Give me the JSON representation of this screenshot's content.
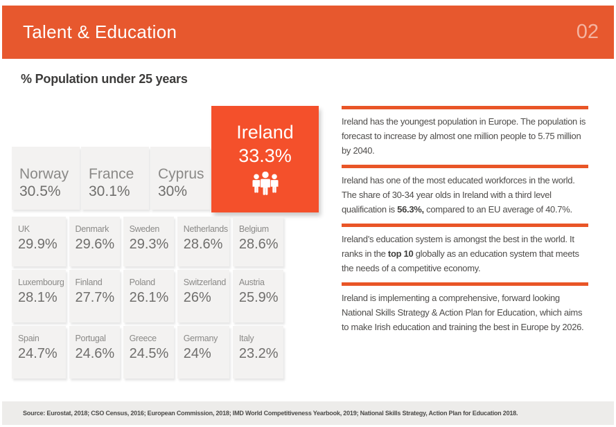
{
  "header": {
    "title": "Talent & Education",
    "page_number": "02"
  },
  "main": {
    "subtitle": "% Population under 25 years"
  },
  "tiles": {
    "featured": {
      "country": "Ireland",
      "value": "33.3%",
      "icon": "people-group-icon"
    },
    "top_row": [
      {
        "country": "Norway",
        "value": "30.5%"
      },
      {
        "country": "France",
        "value": "30.1%"
      },
      {
        "country": "Cyprus",
        "value": "30%"
      }
    ],
    "grid": [
      {
        "country": "UK",
        "value": "29.9%"
      },
      {
        "country": "Denmark",
        "value": "29.6%"
      },
      {
        "country": "Sweden",
        "value": "29.3%"
      },
      {
        "country": "Netherlands",
        "value": "28.6%"
      },
      {
        "country": "Belgium",
        "value": "28.6%"
      },
      {
        "country": "Luxembourg",
        "value": "28.1%"
      },
      {
        "country": "Finland",
        "value": "27.7%"
      },
      {
        "country": "Poland",
        "value": "26.1%"
      },
      {
        "country": "Switzerland",
        "value": "26%"
      },
      {
        "country": "Austria",
        "value": "25.9%"
      },
      {
        "country": "Spain",
        "value": "24.7%"
      },
      {
        "country": "Portugal",
        "value": "24.6%"
      },
      {
        "country": "Greece",
        "value": "24.5%"
      },
      {
        "country": "Germany",
        "value": "24%"
      },
      {
        "country": "Italy",
        "value": "23.2%"
      }
    ]
  },
  "chart_data": {
    "type": "table",
    "title": "% Population under 25 years",
    "unit": "%",
    "categories": [
      "Ireland",
      "Norway",
      "France",
      "Cyprus",
      "UK",
      "Denmark",
      "Sweden",
      "Netherlands",
      "Belgium",
      "Luxembourg",
      "Finland",
      "Poland",
      "Switzerland",
      "Austria",
      "Spain",
      "Portugal",
      "Greece",
      "Germany",
      "Italy"
    ],
    "values": [
      33.3,
      30.5,
      30.1,
      30,
      29.9,
      29.6,
      29.3,
      28.6,
      28.6,
      28.1,
      27.7,
      26.1,
      26,
      25.9,
      24.7,
      24.6,
      24.5,
      24,
      23.2
    ],
    "highlighted": "Ireland"
  },
  "facts": [
    {
      "segments": [
        {
          "text": "Ireland has the youngest population in Europe. The population is forecast to increase by almost one million people to 5.75 million by 2040.",
          "bold": false
        }
      ]
    },
    {
      "segments": [
        {
          "text": "Ireland has one of the most educated workforces in the world. The share of 30-34 year olds in Ireland with a third level qualification is ",
          "bold": false
        },
        {
          "text": "56.3%,",
          "bold": true
        },
        {
          "text": " compared to an EU average of 40.7%.",
          "bold": false
        }
      ]
    },
    {
      "segments": [
        {
          "text": "Ireland’s education system is amongst the best in the world. It ranks in the ",
          "bold": false
        },
        {
          "text": "top 10",
          "bold": true
        },
        {
          "text": " globally as an education system that meets the needs of a competitive economy.",
          "bold": false
        }
      ]
    },
    {
      "segments": [
        {
          "text": "Ireland is implementing a comprehensive, forward looking National Skills Strategy & Action Plan for Education, which aims to make Irish education and training the best in Europe by 2026.",
          "bold": false
        }
      ]
    }
  ],
  "footer": {
    "source": "Source: Eurostat, 2018; CSO Census, 2016; European Commission, 2018; IMD World Competitiveness Yearbook, 2019; National Skills Strategy, Action Plan for Education 2018."
  },
  "colors": {
    "header_bg": "#e7582e",
    "featured_tile_bg": "#f4502b",
    "rule_accent": "#e95527",
    "tile_bg": "#f3f2f1",
    "footer_bg": "#edecea",
    "tile_text": "#8a8987",
    "body_text": "#4e4c4a"
  }
}
